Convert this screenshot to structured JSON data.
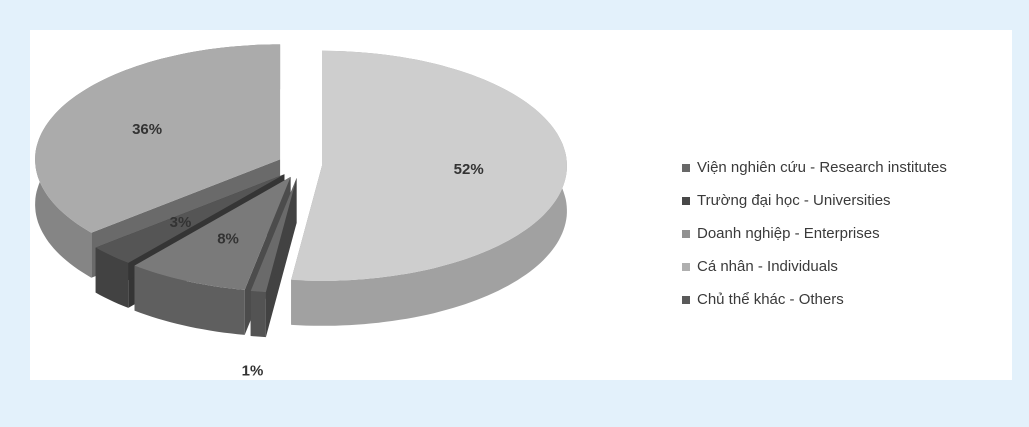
{
  "chart_data": {
    "type": "pie",
    "categories": [
      "Viện nghiên cứu - Research institutes",
      "Trường đại học - Universities",
      "Doanh nghiệp - Enterprises",
      "Cá nhân - Individuals",
      "Chủ thể khác - Others"
    ],
    "values": [
      8,
      3,
      36,
      52,
      1
    ],
    "value_labels": [
      "8%",
      "3%",
      "36%",
      "52%",
      "1%"
    ],
    "colors": [
      "#7a7a7a",
      "#555555",
      "#ababab",
      "#cecece",
      "#6a6a6a"
    ],
    "legend": "right"
  }
}
